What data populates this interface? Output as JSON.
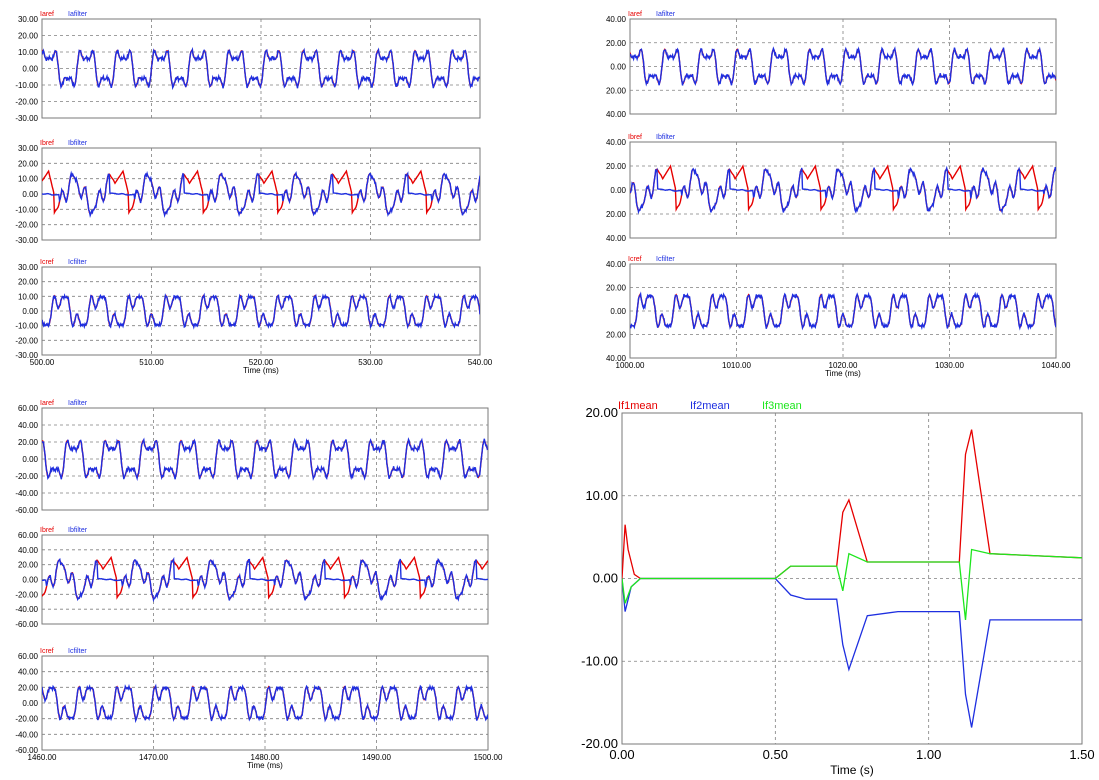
{
  "colors": {
    "red": "#e60000",
    "blue": "#1e2fe0",
    "green": "#1ee61e",
    "axis": "#7a7a7a",
    "grid": "#808080",
    "text": "#000000"
  },
  "panels": {
    "top_left": {
      "xlabel": "Time (ms)",
      "xticks": [
        "500.00",
        "510.00",
        "520.00",
        "530.00",
        "540.00"
      ]
    },
    "top_right": {
      "xlabel": "Time (ms)",
      "xticks": [
        "1000.00",
        "1010.00",
        "1020.00",
        "1030.00",
        "1040.00"
      ]
    },
    "bot_left": {
      "xlabel": "Time (ms)",
      "xticks": [
        "1460.00",
        "1470.00",
        "1480.00",
        "1490.00",
        "1500.00"
      ]
    },
    "bot_right": {
      "xlabel": "Time (s)",
      "xticks": [
        "0.00",
        "0.50",
        "1.00",
        "1.50"
      ]
    }
  },
  "chart_data": [
    {
      "type": "line",
      "panel": "top_left",
      "xlabel": "",
      "ylabel": "",
      "xlim": [
        500,
        540
      ],
      "ylim": [
        -30,
        30
      ],
      "yticks": [
        "30.00",
        "20.00",
        "10.00",
        "0.00",
        "-10.00",
        "-20.00",
        "-30.00"
      ],
      "series": [
        {
          "name": "Iaref",
          "color": "red"
        },
        {
          "name": "Iafilter",
          "color": "blue"
        }
      ],
      "grid": true
    },
    {
      "type": "line",
      "panel": "top_left",
      "xlabel": "",
      "ylabel": "",
      "xlim": [
        500,
        540
      ],
      "ylim": [
        -30,
        30
      ],
      "yticks": [
        "30.00",
        "20.00",
        "10.00",
        "0.00",
        "-10.00",
        "-20.00",
        "-30.00"
      ],
      "series": [
        {
          "name": "Ibref",
          "color": "red"
        },
        {
          "name": "Ibfilter",
          "color": "blue"
        }
      ],
      "grid": true
    },
    {
      "type": "line",
      "panel": "top_left",
      "xlabel": "Time (ms)",
      "ylabel": "",
      "xlim": [
        500,
        540
      ],
      "ylim": [
        -30,
        30
      ],
      "yticks": [
        "30.00",
        "20.00",
        "10.00",
        "0.00",
        "-10.00",
        "-20.00",
        "-30.00"
      ],
      "series": [
        {
          "name": "Icref",
          "color": "red"
        },
        {
          "name": "Icfilter",
          "color": "blue"
        }
      ],
      "grid": true
    },
    {
      "type": "line",
      "panel": "top_right",
      "xlabel": "",
      "ylabel": "",
      "xlim": [
        1000,
        1040
      ],
      "ylim": [
        -40,
        40
      ],
      "yticks": [
        "40.00",
        "20.00",
        "0.00",
        "20.00",
        "40.00"
      ],
      "series": [
        {
          "name": "Iaref",
          "color": "red"
        },
        {
          "name": "Iafilter",
          "color": "blue"
        }
      ],
      "grid": true
    },
    {
      "type": "line",
      "panel": "top_right",
      "xlabel": "",
      "ylabel": "",
      "xlim": [
        1000,
        1040
      ],
      "ylim": [
        -40,
        40
      ],
      "yticks": [
        "40.00",
        "20.00",
        "0.00",
        "20.00",
        "40.00"
      ],
      "series": [
        {
          "name": "Ibref",
          "color": "red"
        },
        {
          "name": "Ibfilter",
          "color": "blue"
        }
      ],
      "grid": true
    },
    {
      "type": "line",
      "panel": "top_right",
      "xlabel": "Time (ms)",
      "ylabel": "",
      "xlim": [
        1000,
        1040
      ],
      "ylim": [
        -40,
        40
      ],
      "yticks": [
        "40.00",
        "20.00",
        "0.00",
        "20.00",
        "40.00"
      ],
      "series": [
        {
          "name": "Icref",
          "color": "red"
        },
        {
          "name": "Icfilter",
          "color": "blue"
        }
      ],
      "grid": true
    },
    {
      "type": "line",
      "panel": "bot_left",
      "xlabel": "",
      "ylabel": "",
      "xlim": [
        1460,
        1500
      ],
      "ylim": [
        -60,
        60
      ],
      "yticks": [
        "60.00",
        "40.00",
        "20.00",
        "0.00",
        "-20.00",
        "-40.00",
        "-60.00"
      ],
      "series": [
        {
          "name": "Iaref",
          "color": "red"
        },
        {
          "name": "Iafilter",
          "color": "blue"
        }
      ],
      "grid": true
    },
    {
      "type": "line",
      "panel": "bot_left",
      "xlabel": "",
      "ylabel": "",
      "xlim": [
        1460,
        1500
      ],
      "ylim": [
        -60,
        60
      ],
      "yticks": [
        "60.00",
        "40.00",
        "20.00",
        "0.00",
        "-20.00",
        "-40.00",
        "-60.00"
      ],
      "series": [
        {
          "name": "Ibref",
          "color": "red"
        },
        {
          "name": "Ibfilter",
          "color": "blue"
        }
      ],
      "grid": true
    },
    {
      "type": "line",
      "panel": "bot_left",
      "xlabel": "Time (ms)",
      "ylabel": "",
      "xlim": [
        1460,
        1500
      ],
      "ylim": [
        -60,
        60
      ],
      "yticks": [
        "60.00",
        "40.00",
        "20.00",
        "0.00",
        "-20.00",
        "-40.00",
        "-60.00"
      ],
      "series": [
        {
          "name": "Icref",
          "color": "red"
        },
        {
          "name": "Icfilter",
          "color": "blue"
        }
      ],
      "grid": true
    },
    {
      "type": "line",
      "panel": "bot_right",
      "xlabel": "Time (s)",
      "ylabel": "",
      "xlim": [
        0,
        1.5
      ],
      "ylim": [
        -20,
        20
      ],
      "yticks": [
        "20.00",
        "10.00",
        "0.00",
        "-10.00",
        "-20.00"
      ],
      "series": [
        {
          "name": "If1mean",
          "color": "red",
          "x": [
            0,
            0.01,
            0.02,
            0.04,
            0.06,
            0.1,
            0.5,
            0.55,
            0.7,
            0.72,
            0.74,
            0.8,
            0.9,
            1.1,
            1.12,
            1.14,
            1.2,
            1.5
          ],
          "y": [
            0,
            6.5,
            3.5,
            0.5,
            0,
            0,
            0,
            1.5,
            1.5,
            8,
            9.5,
            2,
            2,
            2,
            15,
            18,
            3,
            2.5
          ]
        },
        {
          "name": "If2mean",
          "color": "blue",
          "x": [
            0,
            0.01,
            0.03,
            0.06,
            0.1,
            0.5,
            0.55,
            0.6,
            0.7,
            0.72,
            0.74,
            0.8,
            0.9,
            1.1,
            1.12,
            1.14,
            1.2,
            1.5
          ],
          "y": [
            0,
            -4,
            -1,
            0,
            0,
            0,
            -2,
            -2.5,
            -2.5,
            -8,
            -11,
            -4.5,
            -4,
            -4,
            -14,
            -18,
            -5,
            -5
          ]
        },
        {
          "name": "If3mean",
          "color": "green",
          "x": [
            0,
            0.01,
            0.03,
            0.06,
            0.1,
            0.5,
            0.55,
            0.7,
            0.72,
            0.74,
            0.8,
            0.9,
            1.1,
            1.12,
            1.14,
            1.2,
            1.5
          ],
          "y": [
            0,
            -3,
            -1,
            0,
            0,
            0,
            1.5,
            1.5,
            -1.5,
            3,
            2,
            2,
            2,
            -5,
            3.5,
            3,
            2.5
          ]
        }
      ],
      "grid": true
    }
  ]
}
